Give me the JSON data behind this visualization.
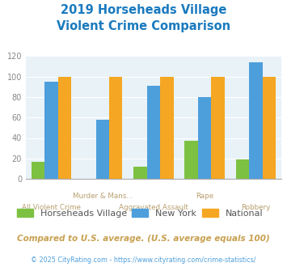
{
  "title_line1": "2019 Horseheads Village",
  "title_line2": "Violent Crime Comparison",
  "categories": [
    "All Violent Crime",
    "Murder & Mans...",
    "Aggravated Assault",
    "Rape",
    "Robbery"
  ],
  "horseheads": [
    17,
    0,
    12,
    37,
    19
  ],
  "newyork": [
    95,
    58,
    91,
    80,
    114
  ],
  "national": [
    100,
    100,
    100,
    100,
    100
  ],
  "color_horseheads": "#7dc142",
  "color_newyork": "#4d9fdc",
  "color_national": "#f5a623",
  "bg_color": "#e8f2f7",
  "title_color": "#1a7abf",
  "label_color": "#b8a070",
  "ylim": [
    0,
    120
  ],
  "yticks": [
    0,
    20,
    40,
    60,
    80,
    100,
    120
  ],
  "legend_labels": [
    "Horseheads Village",
    "New York",
    "National"
  ],
  "footer1": "Compared to U.S. average. (U.S. average equals 100)",
  "footer2": "© 2025 CityRating.com - https://www.cityrating.com/crime-statistics/",
  "footer1_color": "#c8a050",
  "footer2_color": "#4d9fdc"
}
